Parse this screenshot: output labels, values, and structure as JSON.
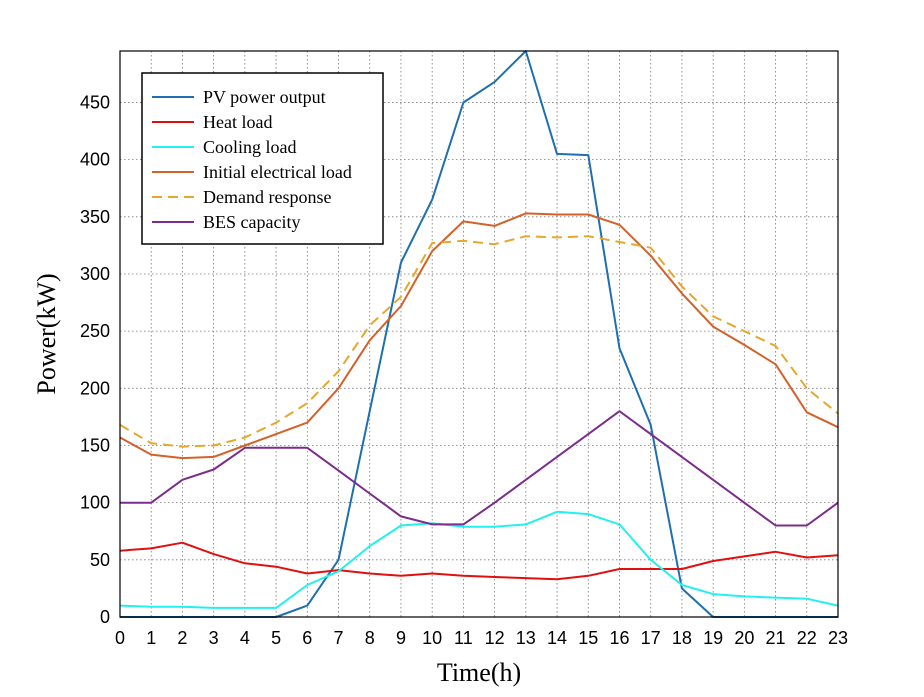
{
  "chart_data": {
    "type": "line",
    "title": "",
    "xlabel": "Time(h)",
    "ylabel": "Power(kW)",
    "x": [
      0,
      1,
      2,
      3,
      4,
      5,
      6,
      7,
      8,
      9,
      10,
      11,
      12,
      13,
      14,
      15,
      16,
      17,
      18,
      19,
      20,
      21,
      22,
      23
    ],
    "xlim": [
      0,
      23
    ],
    "ylim": [
      0,
      495
    ],
    "yticks": [
      0,
      50,
      100,
      150,
      200,
      250,
      300,
      350,
      400,
      450
    ],
    "grid": true,
    "legend_position": "top-left",
    "series": [
      {
        "name": "PV power output",
        "color": "#1f6fb0",
        "dash": "solid",
        "values": [
          0,
          0,
          0,
          0,
          0,
          0,
          10,
          50,
          180,
          310,
          365,
          450,
          468,
          495,
          405,
          404,
          235,
          168,
          25,
          0,
          0,
          0,
          0,
          0
        ]
      },
      {
        "name": "Heat load",
        "color": "#e01010",
        "dash": "solid",
        "values": [
          58,
          60,
          65,
          55,
          47,
          44,
          38,
          41,
          38,
          36,
          38,
          36,
          35,
          34,
          33,
          36,
          42,
          42,
          42,
          49,
          53,
          57,
          52,
          54
        ]
      },
      {
        "name": "Cooling load",
        "color": "#22f0ee",
        "dash": "solid",
        "values": [
          10,
          9,
          9,
          8,
          8,
          8,
          28,
          40,
          62,
          80,
          82,
          79,
          79,
          81,
          92,
          90,
          81,
          50,
          28,
          20,
          18,
          17,
          16,
          10
        ]
      },
      {
        "name": "Initial electrical load",
        "color": "#d2622a",
        "dash": "solid",
        "values": [
          157,
          142,
          139,
          140,
          150,
          160,
          170,
          200,
          242,
          272,
          320,
          346,
          342,
          353,
          352,
          352,
          343,
          316,
          283,
          254,
          238,
          221,
          179,
          166
        ]
      },
      {
        "name": "Demand response",
        "color": "#e6a82a",
        "dash": "dashed",
        "values": [
          168,
          152,
          149,
          150,
          157,
          170,
          187,
          215,
          255,
          280,
          327,
          329,
          326,
          333,
          332,
          333,
          328,
          323,
          289,
          263,
          250,
          237,
          200,
          178
        ]
      },
      {
        "name": "BES capacity",
        "color": "#7b2c8e",
        "dash": "solid",
        "values": [
          100,
          100,
          120,
          129,
          148,
          148,
          148,
          128,
          108,
          88,
          81,
          81,
          100,
          120,
          140,
          160,
          180,
          160,
          140,
          120,
          100,
          80,
          80,
          100
        ]
      }
    ]
  }
}
